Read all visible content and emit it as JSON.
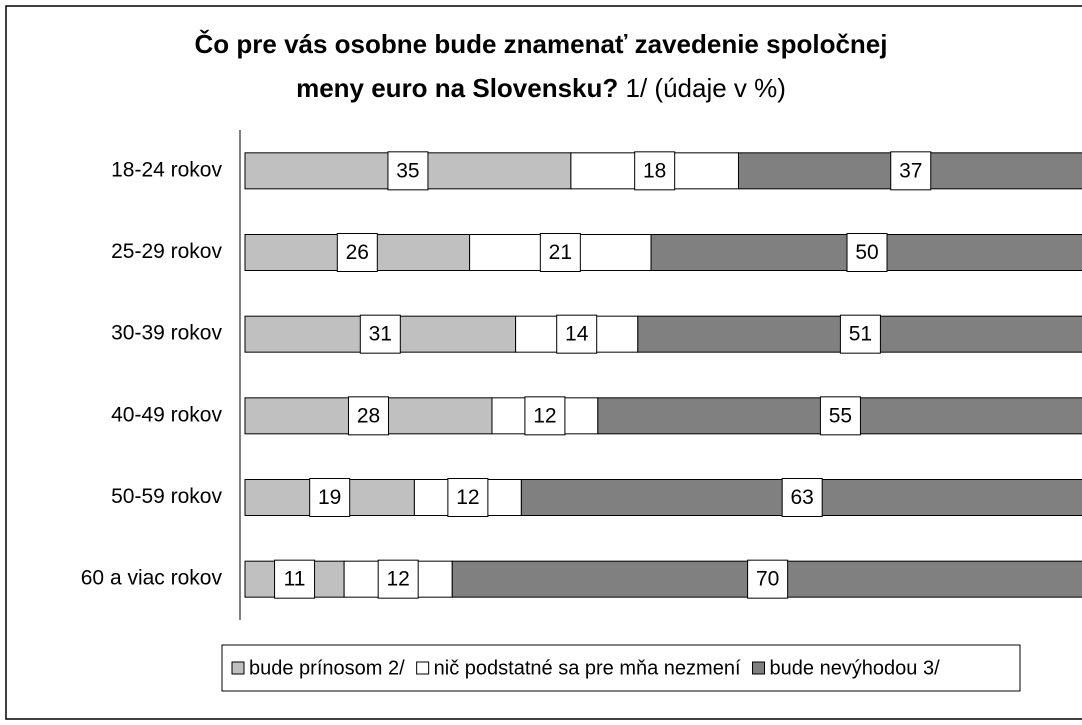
{
  "chart_data": {
    "type": "stacked_bar_percent",
    "title": "Čo pre vás osobne bude znamenať zavedenie spoločnej meny euro na Slovensku?",
    "subtitle": "1/ (údaje v %)",
    "categories": [
      "18-24 rokov",
      "25-29 rokov",
      "30-39 rokov",
      "40-49 rokov",
      "50-59 rokov",
      "60 a viac rokov"
    ],
    "series": [
      {
        "name": "bude prínosom 2/",
        "color": "#c0c0c0",
        "values": [
          35,
          26,
          31,
          28,
          19,
          11
        ]
      },
      {
        "name": "nič podstatné sa pre mňa nezmení",
        "color": "#ffffff",
        "values": [
          18,
          21,
          14,
          12,
          12,
          12
        ]
      },
      {
        "name": "bude nevýhodou 3/",
        "color": "#808080",
        "values": [
          37,
          50,
          51,
          55,
          63,
          70
        ]
      }
    ],
    "legend": "bottom"
  }
}
